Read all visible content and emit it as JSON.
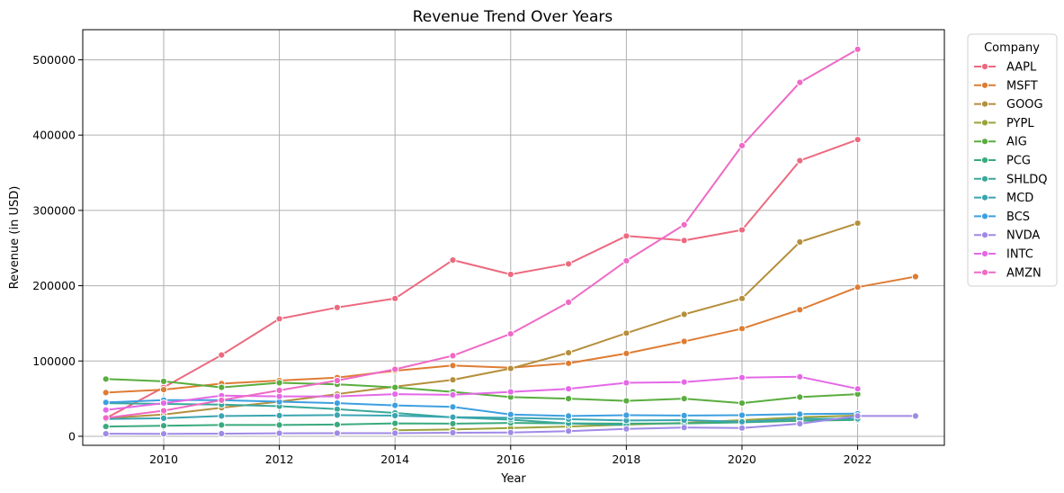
{
  "chart_data": {
    "type": "line",
    "title": "Revenue Trend Over Years",
    "xlabel": "Year",
    "ylabel": "Revenue (in USD)",
    "xlim": [
      2008.6,
      2023.5
    ],
    "ylim": [
      -12000,
      540000
    ],
    "xticks": [
      2010,
      2012,
      2014,
      2016,
      2018,
      2020,
      2022
    ],
    "yticks": [
      0,
      100000,
      200000,
      300000,
      400000,
      500000
    ],
    "grid": true,
    "legend": {
      "title": "Company",
      "placement": "outside-right"
    },
    "series": [
      {
        "name": "AAPL",
        "color": "#ec6a7f",
        "points": [
          [
            2009,
            24000
          ],
          [
            2010,
            65000
          ],
          [
            2011,
            108000
          ],
          [
            2012,
            156000
          ],
          [
            2013,
            171000
          ],
          [
            2014,
            183000
          ],
          [
            2015,
            234000
          ],
          [
            2016,
            215000
          ],
          [
            2017,
            229000
          ],
          [
            2018,
            266000
          ],
          [
            2019,
            260000
          ],
          [
            2020,
            274000
          ],
          [
            2021,
            366000
          ],
          [
            2022,
            394000
          ]
        ]
      },
      {
        "name": "MSFT",
        "color": "#de7c34",
        "points": [
          [
            2009,
            58000
          ],
          [
            2010,
            62000
          ],
          [
            2011,
            70000
          ],
          [
            2012,
            74000
          ],
          [
            2013,
            78000
          ],
          [
            2014,
            87000
          ],
          [
            2015,
            94000
          ],
          [
            2016,
            91000
          ],
          [
            2017,
            97000
          ],
          [
            2018,
            110000
          ],
          [
            2019,
            126000
          ],
          [
            2020,
            143000
          ],
          [
            2021,
            168000
          ],
          [
            2022,
            198000
          ],
          [
            2023,
            212000
          ]
        ]
      },
      {
        "name": "GOOG",
        "color": "#b58f3c",
        "points": [
          [
            2009,
            24000
          ],
          [
            2010,
            29000
          ],
          [
            2011,
            38000
          ],
          [
            2012,
            46000
          ],
          [
            2013,
            56000
          ],
          [
            2014,
            66000
          ],
          [
            2015,
            75000
          ],
          [
            2016,
            90000
          ],
          [
            2017,
            111000
          ],
          [
            2018,
            137000
          ],
          [
            2019,
            162000
          ],
          [
            2020,
            183000
          ],
          [
            2021,
            258000
          ],
          [
            2022,
            283000
          ]
        ]
      },
      {
        "name": "PYPL",
        "color": "#99a33a",
        "points": [
          [
            2014,
            8000
          ],
          [
            2015,
            9000
          ],
          [
            2016,
            11000
          ],
          [
            2017,
            13000
          ],
          [
            2018,
            15500
          ],
          [
            2019,
            17800
          ],
          [
            2020,
            21500
          ],
          [
            2021,
            25400
          ],
          [
            2022,
            27500
          ]
        ]
      },
      {
        "name": "AIG",
        "color": "#59ad3e",
        "points": [
          [
            2009,
            76000
          ],
          [
            2010,
            73000
          ],
          [
            2011,
            65000
          ],
          [
            2012,
            71000
          ],
          [
            2013,
            69000
          ],
          [
            2014,
            65000
          ],
          [
            2015,
            59000
          ],
          [
            2016,
            52000
          ],
          [
            2017,
            50000
          ],
          [
            2018,
            47000
          ],
          [
            2019,
            50000
          ],
          [
            2020,
            44000
          ],
          [
            2021,
            52000
          ],
          [
            2022,
            56000
          ]
        ]
      },
      {
        "name": "PCG",
        "color": "#3aaa7e",
        "points": [
          [
            2009,
            13000
          ],
          [
            2010,
            14000
          ],
          [
            2011,
            15000
          ],
          [
            2012,
            15000
          ],
          [
            2013,
            15600
          ],
          [
            2014,
            17100
          ],
          [
            2015,
            16800
          ],
          [
            2016,
            17700
          ],
          [
            2017,
            17100
          ],
          [
            2018,
            16800
          ],
          [
            2019,
            17100
          ],
          [
            2020,
            18500
          ],
          [
            2021,
            20600
          ],
          [
            2022,
            21700
          ]
        ]
      },
      {
        "name": "SHLDQ",
        "color": "#3aa89a",
        "points": [
          [
            2009,
            44000
          ],
          [
            2010,
            43000
          ],
          [
            2011,
            42000
          ],
          [
            2012,
            40000
          ],
          [
            2013,
            36000
          ],
          [
            2014,
            31000
          ],
          [
            2015,
            25000
          ],
          [
            2016,
            22000
          ],
          [
            2017,
            17000
          ],
          [
            2018,
            15000
          ]
        ]
      },
      {
        "name": "MCD",
        "color": "#3aa5b1",
        "points": [
          [
            2009,
            23000
          ],
          [
            2010,
            24000
          ],
          [
            2011,
            27000
          ],
          [
            2012,
            27500
          ],
          [
            2013,
            28100
          ],
          [
            2014,
            27400
          ],
          [
            2015,
            25400
          ],
          [
            2016,
            24600
          ],
          [
            2017,
            22800
          ],
          [
            2018,
            21000
          ],
          [
            2019,
            21400
          ],
          [
            2020,
            19200
          ],
          [
            2021,
            23200
          ],
          [
            2022,
            23200
          ]
        ]
      },
      {
        "name": "BCS",
        "color": "#3d9fe0",
        "points": [
          [
            2009,
            45000
          ],
          [
            2010,
            48000
          ],
          [
            2011,
            48000
          ],
          [
            2012,
            46000
          ],
          [
            2013,
            44000
          ],
          [
            2014,
            41000
          ],
          [
            2015,
            39000
          ],
          [
            2016,
            29000
          ],
          [
            2017,
            27000
          ],
          [
            2018,
            28000
          ],
          [
            2019,
            27500
          ],
          [
            2020,
            28000
          ],
          [
            2021,
            29500
          ],
          [
            2022,
            30000
          ]
        ]
      },
      {
        "name": "NVDA",
        "color": "#a08ae6",
        "points": [
          [
            2009,
            3400
          ],
          [
            2010,
            3300
          ],
          [
            2011,
            3500
          ],
          [
            2012,
            4000
          ],
          [
            2013,
            4100
          ],
          [
            2014,
            4100
          ],
          [
            2015,
            4700
          ],
          [
            2016,
            5000
          ],
          [
            2017,
            6900
          ],
          [
            2018,
            9700
          ],
          [
            2019,
            11700
          ],
          [
            2020,
            10900
          ],
          [
            2021,
            16700
          ],
          [
            2022,
            27000
          ],
          [
            2023,
            27000
          ]
        ]
      },
      {
        "name": "INTC",
        "color": "#e468e6",
        "points": [
          [
            2009,
            35000
          ],
          [
            2010,
            44000
          ],
          [
            2011,
            54000
          ],
          [
            2012,
            53000
          ],
          [
            2013,
            53000
          ],
          [
            2014,
            56000
          ],
          [
            2015,
            55000
          ],
          [
            2016,
            59000
          ],
          [
            2017,
            63000
          ],
          [
            2018,
            71000
          ],
          [
            2019,
            72000
          ],
          [
            2020,
            78000
          ],
          [
            2021,
            79000
          ],
          [
            2022,
            63000
          ]
        ]
      },
      {
        "name": "AMZN",
        "color": "#ee6ac6",
        "points": [
          [
            2009,
            24500
          ],
          [
            2010,
            34000
          ],
          [
            2011,
            48000
          ],
          [
            2012,
            61000
          ],
          [
            2013,
            74000
          ],
          [
            2014,
            89000
          ],
          [
            2015,
            107000
          ],
          [
            2016,
            136000
          ],
          [
            2017,
            178000
          ],
          [
            2018,
            233000
          ],
          [
            2019,
            281000
          ],
          [
            2020,
            386000
          ],
          [
            2021,
            470000
          ],
          [
            2022,
            514000
          ]
        ]
      }
    ]
  }
}
